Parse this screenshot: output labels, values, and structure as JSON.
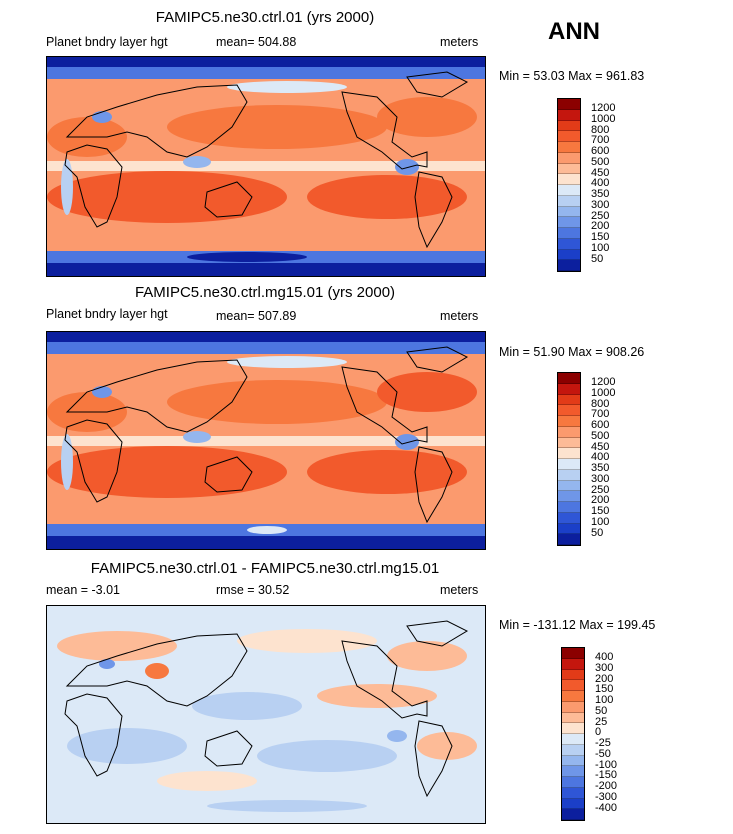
{
  "season": "ANN",
  "panels": [
    {
      "title": "FAMIPC5.ne30.ctrl.01 (yrs 2000)",
      "variable": "Planet bndry layer hgt",
      "stat1": "mean= 504.88",
      "units": "meters",
      "range": "Min =  53.03 Max = 961.83",
      "levels": [
        "1200",
        "1000",
        "800",
        "700",
        "600",
        "500",
        "450",
        "400",
        "350",
        "300",
        "250",
        "200",
        "150",
        "100",
        "50"
      ],
      "colors": [
        "#8b0000",
        "#c4160e",
        "#e23b18",
        "#f25a2c",
        "#f7783f",
        "#fb9a6e",
        "#fdbb97",
        "#fde3cf",
        "#dce9f7",
        "#b8d0f2",
        "#94b6ee",
        "#6f96e8",
        "#4d76e0",
        "#2f56d6",
        "#1b3fc8",
        "#0c1f9e"
      ]
    },
    {
      "title": "FAMIPC5.ne30.ctrl.mg15.01 (yrs 2000)",
      "variable": "Planet bndry layer hgt",
      "stat1": "mean= 507.89",
      "units": "meters",
      "range": "Min =  51.90 Max = 908.26",
      "levels": [
        "1200",
        "1000",
        "800",
        "700",
        "600",
        "500",
        "450",
        "400",
        "350",
        "300",
        "250",
        "200",
        "150",
        "100",
        "50"
      ],
      "colors": [
        "#8b0000",
        "#c4160e",
        "#e23b18",
        "#f25a2c",
        "#f7783f",
        "#fb9a6e",
        "#fdbb97",
        "#fde3cf",
        "#dce9f7",
        "#b8d0f2",
        "#94b6ee",
        "#6f96e8",
        "#4d76e0",
        "#2f56d6",
        "#1b3fc8",
        "#0c1f9e"
      ]
    },
    {
      "title": "FAMIPC5.ne30.ctrl.01 - FAMIPC5.ne30.ctrl.mg15.01",
      "stat1": "mean =   -3.01",
      "stat2": "rmse =   30.52",
      "units": "meters",
      "range": "Min = -131.12 Max = 199.45",
      "levels": [
        "400",
        "300",
        "200",
        "150",
        "100",
        "50",
        "25",
        "0",
        "-25",
        "-50",
        "-100",
        "-150",
        "-200",
        "-300",
        "-400"
      ],
      "colors": [
        "#8b0000",
        "#c4160e",
        "#e23b18",
        "#f25a2c",
        "#f7783f",
        "#fb9a6e",
        "#fdbb97",
        "#fde3cf",
        "#dce9f7",
        "#b8d0f2",
        "#94b6ee",
        "#6f96e8",
        "#4d76e0",
        "#2f56d6",
        "#1b3fc8",
        "#0c1f9e"
      ]
    }
  ]
}
